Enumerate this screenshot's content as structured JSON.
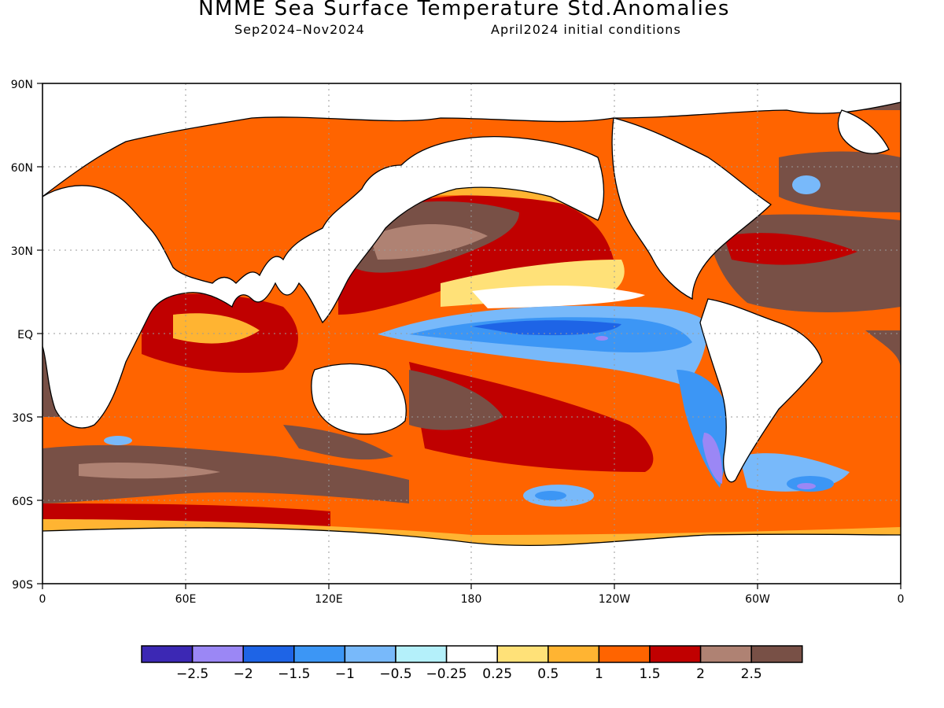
{
  "title": "NMME Sea Surface Temperature Std.Anomalies",
  "subtitle_left": "Sep2024–Nov2024",
  "subtitle_right": "April2024 initial conditions",
  "lat_ticks": [
    "90N",
    "60N",
    "30N",
    "EQ",
    "30S",
    "60S",
    "90S"
  ],
  "lon_ticks": [
    "0",
    "60E",
    "120E",
    "180",
    "120W",
    "60W",
    "0"
  ],
  "colorbar": {
    "colors": [
      "#3c28b4",
      "#9b87f5",
      "#1e64e6",
      "#3c96f5",
      "#78b9fa",
      "#b4f0fa",
      "#ffffff",
      "#ffe178",
      "#ffb432",
      "#ff6400",
      "#c00000",
      "#af8273",
      "#785046"
    ],
    "labels": [
      "−2.5",
      "−2",
      "−1.5",
      "−1",
      "−0.5",
      "−0.25",
      "0.25",
      "0.5",
      "1",
      "1.5",
      "2",
      "2.5"
    ]
  }
}
